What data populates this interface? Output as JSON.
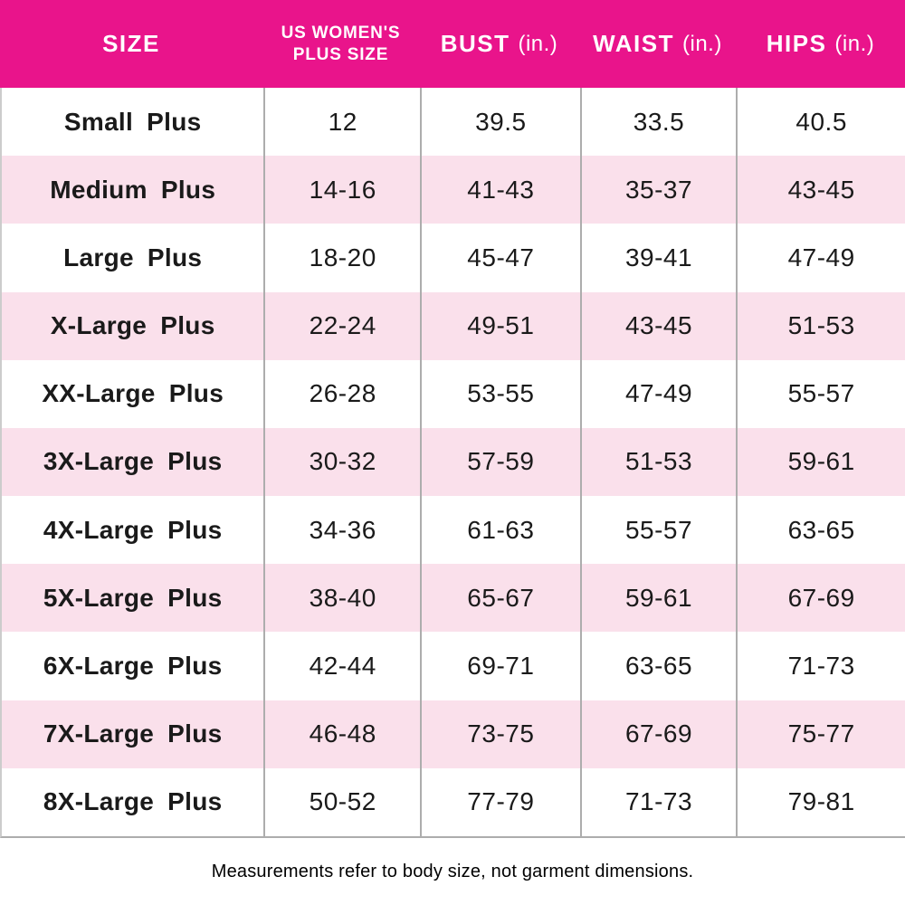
{
  "colors": {
    "header_bg": "#e9148b",
    "header_text": "#ffffff",
    "row_alt_bg": "#fae0eb",
    "grid_line": "#adadad",
    "text": "#1a1a1a"
  },
  "header": {
    "size": "SIZE",
    "plus_size_line1": "US WOMEN'S",
    "plus_size_line2": "PLUS SIZE",
    "bust": "BUST",
    "bust_unit": "(in.)",
    "waist": "WAIST",
    "waist_unit": "(in.)",
    "hips": "HIPS",
    "hips_unit": "(in.)"
  },
  "footer": {
    "note": "Measurements refer to body size, not garment dimensions."
  },
  "chart_data": {
    "type": "table",
    "columns": [
      "SIZE",
      "US WOMEN'S PLUS SIZE",
      "BUST (in.)",
      "WAIST (in.)",
      "HIPS (in.)"
    ],
    "rows": [
      [
        "Small Plus",
        "12",
        "39.5",
        "33.5",
        "40.5"
      ],
      [
        "Medium Plus",
        "14-16",
        "41-43",
        "35-37",
        "43-45"
      ],
      [
        "Large Plus",
        "18-20",
        "45-47",
        "39-41",
        "47-49"
      ],
      [
        "X-Large Plus",
        "22-24",
        "49-51",
        "43-45",
        "51-53"
      ],
      [
        "XX-Large Plus",
        "26-28",
        "53-55",
        "47-49",
        "55-57"
      ],
      [
        "3X-Large Plus",
        "30-32",
        "57-59",
        "51-53",
        "59-61"
      ],
      [
        "4X-Large Plus",
        "34-36",
        "61-63",
        "55-57",
        "63-65"
      ],
      [
        "5X-Large Plus",
        "38-40",
        "65-67",
        "59-61",
        "67-69"
      ],
      [
        "6X-Large Plus",
        "42-44",
        "69-71",
        "63-65",
        "71-73"
      ],
      [
        "7X-Large Plus",
        "46-48",
        "73-75",
        "67-69",
        "75-77"
      ],
      [
        "8X-Large Plus",
        "50-52",
        "77-79",
        "71-73",
        "79-81"
      ]
    ],
    "footnote": "Measurements refer to body size, not garment dimensions.",
    "layout": {
      "striped": true,
      "stripe_pattern": "even rows pink",
      "grid": "vertical separators + bottom rule"
    }
  }
}
